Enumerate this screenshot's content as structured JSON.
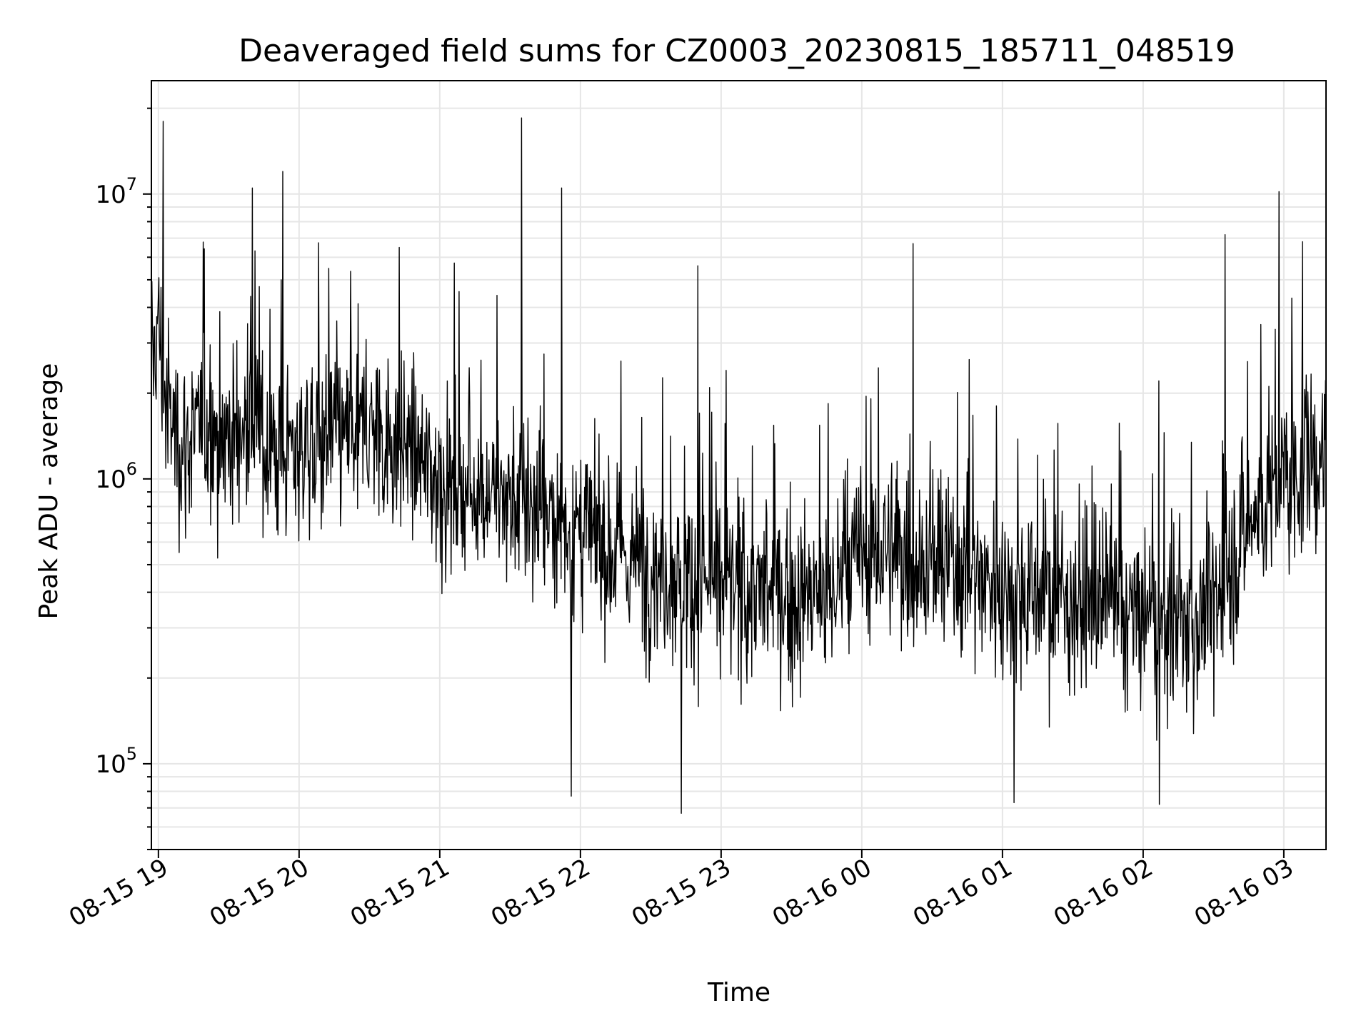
{
  "chart_data": {
    "type": "line",
    "title": "Deaveraged field sums for CZ0003_20230815_185711_048519",
    "xlabel": "Time",
    "ylabel": "Peak ADU - average",
    "x_range": [
      "2023-08-15T18:57",
      "2023-08-16T03:18"
    ],
    "ylim": [
      50000,
      25000000
    ],
    "yscale": "log",
    "grid": true,
    "x_ticks": [
      "08-15 19",
      "08-15 20",
      "08-15 21",
      "08-15 22",
      "08-15 23",
      "08-16 00",
      "08-16 01",
      "08-16 02",
      "08-16 03"
    ],
    "y_ticks": [
      {
        "base": "10",
        "exp": "5",
        "value": 100000
      },
      {
        "base": "10",
        "exp": "6",
        "value": 1000000
      },
      {
        "base": "10",
        "exp": "7",
        "value": 10000000
      }
    ],
    "line_color": "#000000",
    "grid_color": "#e6e6e6",
    "series": [
      {
        "x": [
          "2023-08-15T18:57",
          "2023-08-15T19:00",
          "2023-08-15T19:03",
          "2023-08-15T19:10",
          "2023-08-15T19:20",
          "2023-08-15T19:30",
          "2023-08-15T19:40",
          "2023-08-15T19:50",
          "2023-08-15T20:00",
          "2023-08-15T20:15",
          "2023-08-15T20:30",
          "2023-08-15T20:45",
          "2023-08-15T21:00",
          "2023-08-15T21:15",
          "2023-08-15T21:30",
          "2023-08-15T21:45",
          "2023-08-15T22:00",
          "2023-08-15T22:15",
          "2023-08-15T22:30",
          "2023-08-15T22:45",
          "2023-08-15T23:00",
          "2023-08-15T23:15",
          "2023-08-15T23:30",
          "2023-08-15T23:45",
          "2023-08-16T00:00",
          "2023-08-16T00:15",
          "2023-08-16T00:30",
          "2023-08-16T00:45",
          "2023-08-16T01:00",
          "2023-08-16T01:15",
          "2023-08-16T01:30",
          "2023-08-16T01:45",
          "2023-08-16T02:00",
          "2023-08-16T02:15",
          "2023-08-16T02:30",
          "2023-08-16T02:45",
          "2023-08-16T03:00",
          "2023-08-16T03:10",
          "2023-08-16T03:18"
        ],
        "y": [
          2500000,
          3500000,
          1800000,
          1300000,
          1500000,
          1400000,
          1500000,
          1200000,
          1300000,
          1400000,
          1500000,
          1300000,
          1000000,
          900000,
          850000,
          750000,
          650000,
          550000,
          500000,
          450000,
          420000,
          400000,
          380000,
          380000,
          550000,
          550000,
          500000,
          480000,
          420000,
          400000,
          380000,
          350000,
          320000,
          300000,
          350000,
          700000,
          1000000,
          1100000,
          1200000
        ],
        "spikes": [
          {
            "x": "2023-08-15T19:02",
            "y": 18000000
          },
          {
            "x": "2023-08-15T19:53",
            "y": 12000000
          },
          {
            "x": "2023-08-15T21:35",
            "y": 18500000
          },
          {
            "x": "2023-08-15T21:52",
            "y": 10500000
          },
          {
            "x": "2023-08-15T19:40",
            "y": 10500000
          },
          {
            "x": "2023-08-16T02:58",
            "y": 10200000
          },
          {
            "x": "2023-08-16T00:22",
            "y": 6700000
          },
          {
            "x": "2023-08-15T22:50",
            "y": 5600000
          },
          {
            "x": "2023-08-16T03:08",
            "y": 6800000
          },
          {
            "x": "2023-08-16T02:35",
            "y": 7200000
          },
          {
            "x": "2023-08-15T22:43",
            "y": 67000
          },
          {
            "x": "2023-08-16T02:07",
            "y": 72000
          },
          {
            "x": "2023-08-15T21:56",
            "y": 77000
          },
          {
            "x": "2023-08-16T01:05",
            "y": 73000
          }
        ]
      }
    ]
  }
}
